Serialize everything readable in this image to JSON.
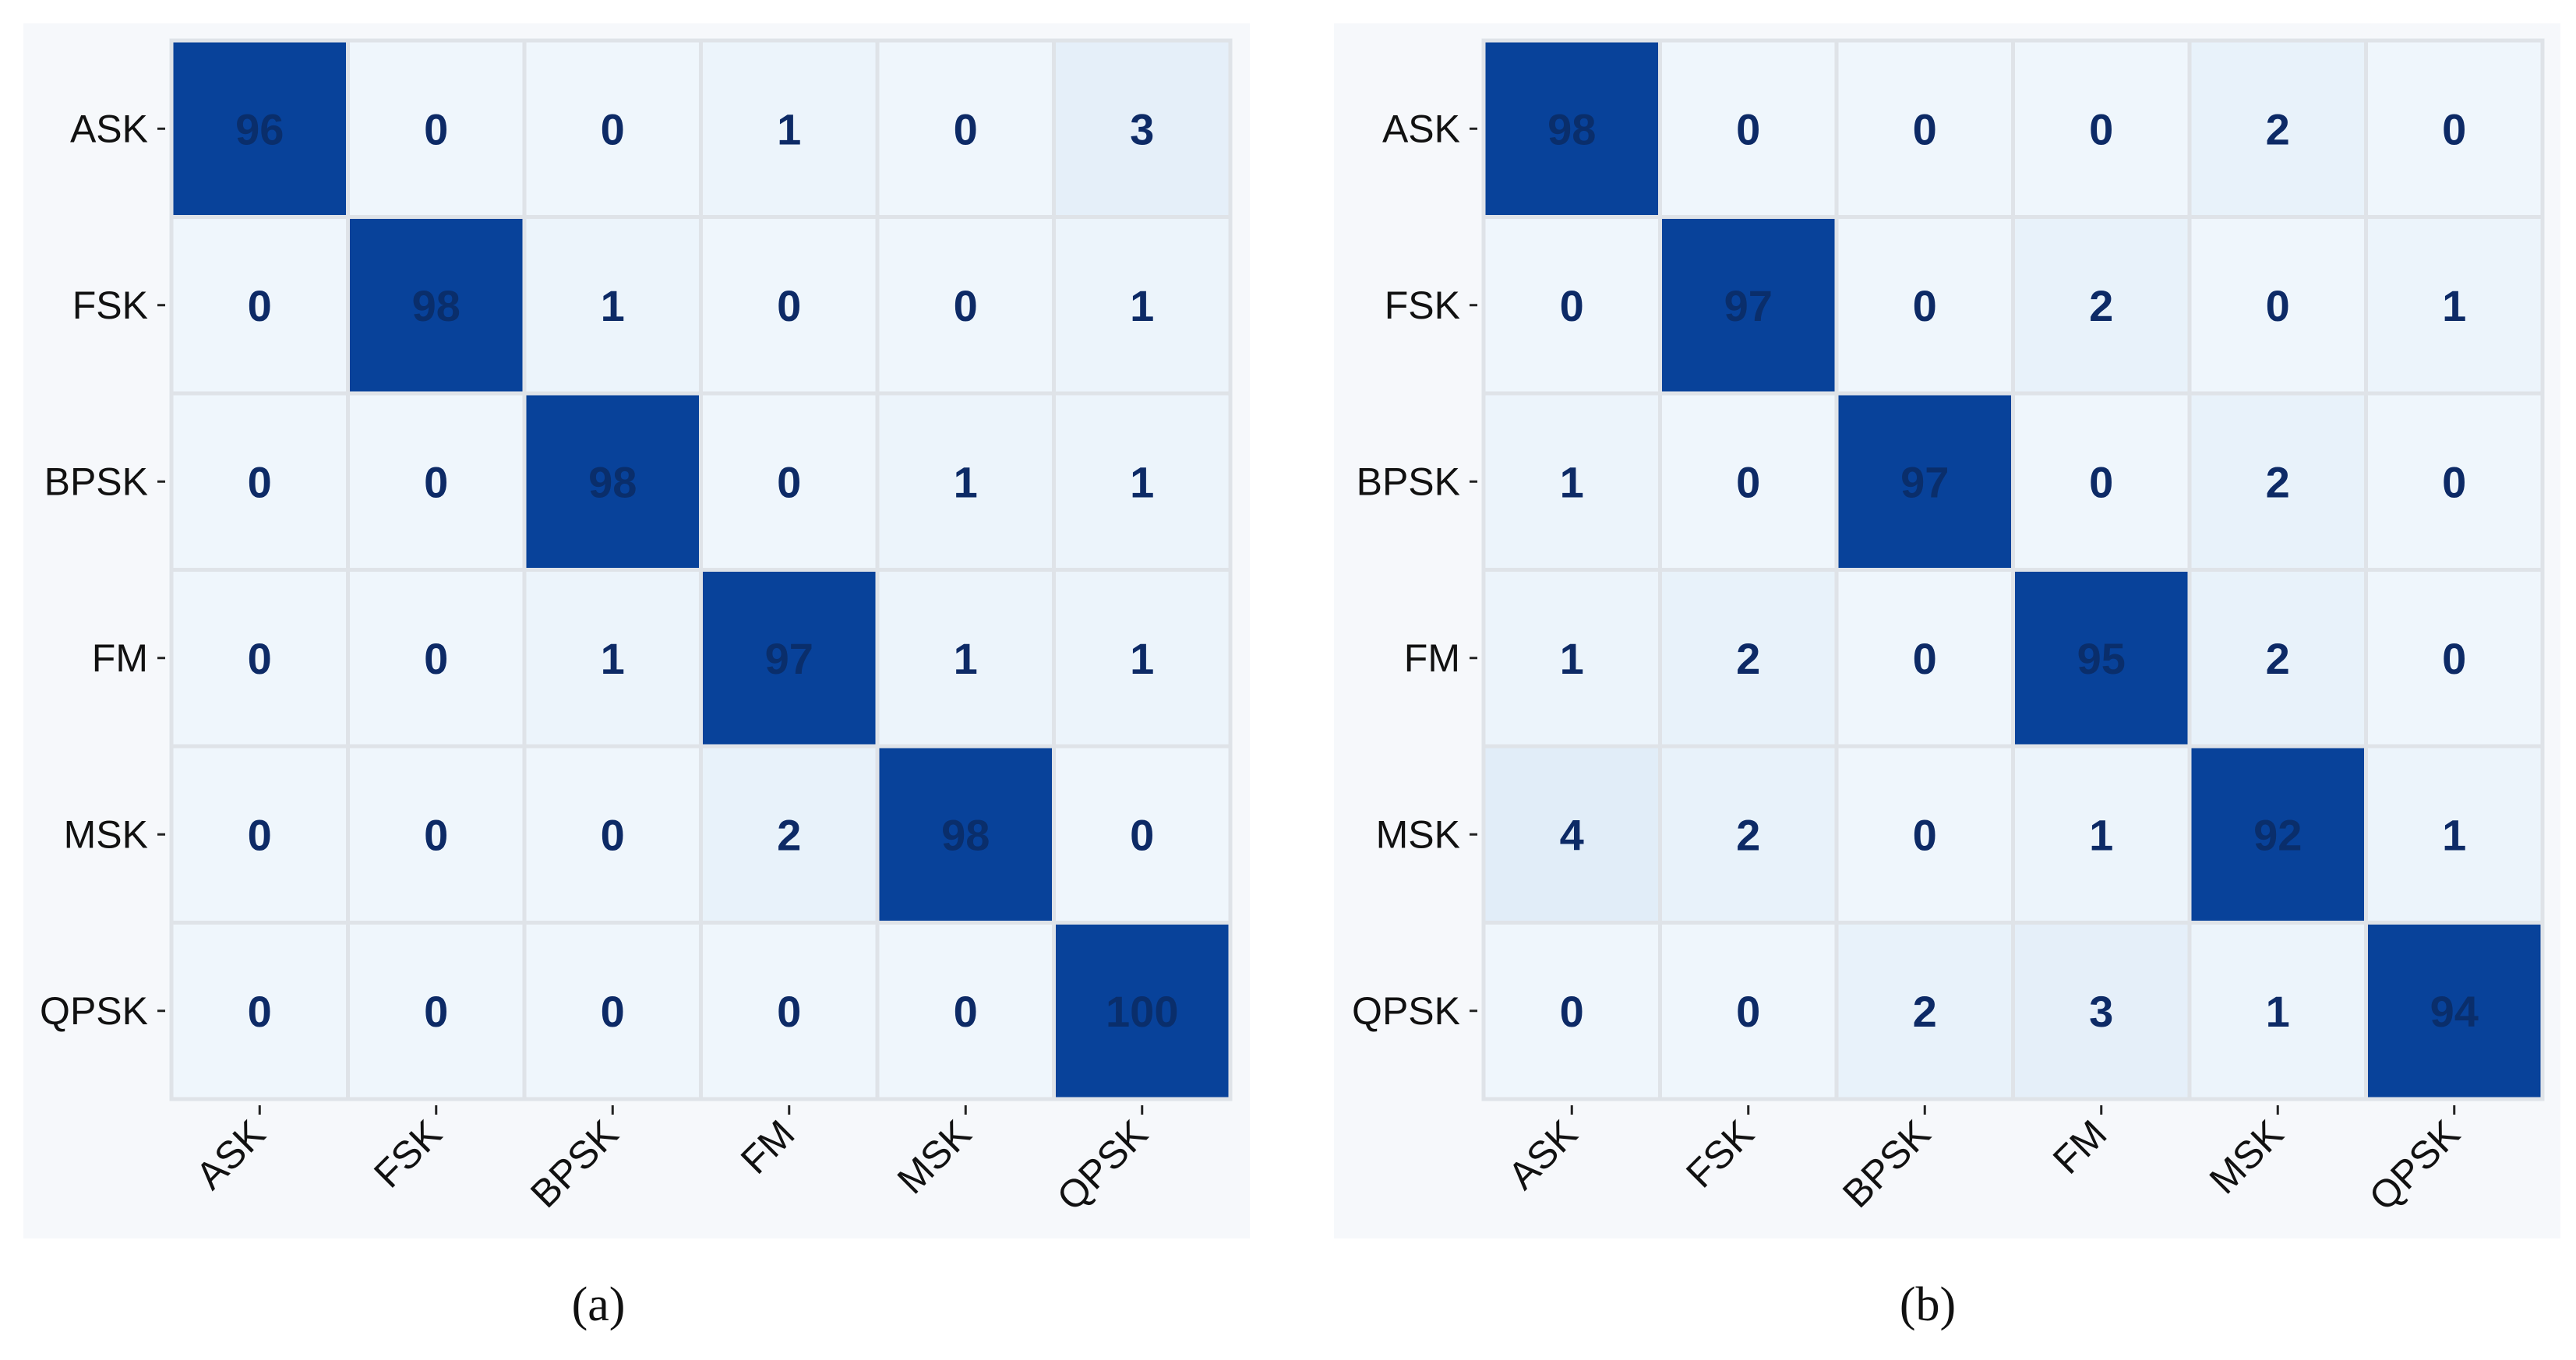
{
  "chart_data": [
    {
      "type": "heatmap",
      "caption_letter": "a",
      "row_labels": [
        "ASK",
        "FSK",
        "BPSK",
        "FM",
        "MSK",
        "QPSK"
      ],
      "col_labels": [
        "ASK",
        "FSK",
        "BPSK",
        "FM",
        "MSK",
        "QPSK"
      ],
      "values": [
        [
          96,
          0,
          0,
          1,
          0,
          3
        ],
        [
          0,
          98,
          1,
          0,
          0,
          1
        ],
        [
          0,
          0,
          98,
          0,
          1,
          1
        ],
        [
          0,
          0,
          1,
          97,
          1,
          1
        ],
        [
          0,
          0,
          0,
          2,
          98,
          0
        ],
        [
          0,
          0,
          0,
          0,
          0,
          100
        ]
      ],
      "vmax": 100,
      "colormap": "Blues",
      "high_color": "#08429a",
      "low_color": "#eff6fc"
    },
    {
      "type": "heatmap",
      "caption_letter": "b",
      "row_labels": [
        "ASK",
        "FSK",
        "BPSK",
        "FM",
        "MSK",
        "QPSK"
      ],
      "col_labels": [
        "ASK",
        "FSK",
        "BPSK",
        "FM",
        "MSK",
        "QPSK"
      ],
      "values": [
        [
          98,
          0,
          0,
          0,
          2,
          0
        ],
        [
          0,
          97,
          0,
          2,
          0,
          1
        ],
        [
          1,
          0,
          97,
          0,
          2,
          0
        ],
        [
          1,
          2,
          0,
          95,
          2,
          0
        ],
        [
          4,
          2,
          0,
          1,
          92,
          1
        ],
        [
          0,
          0,
          2,
          3,
          1,
          94
        ]
      ],
      "vmax": 100,
      "colormap": "Blues",
      "high_color": "#08429a",
      "low_color": "#eff6fc"
    }
  ],
  "captions": {
    "a": "(a)",
    "b": "(b)"
  }
}
